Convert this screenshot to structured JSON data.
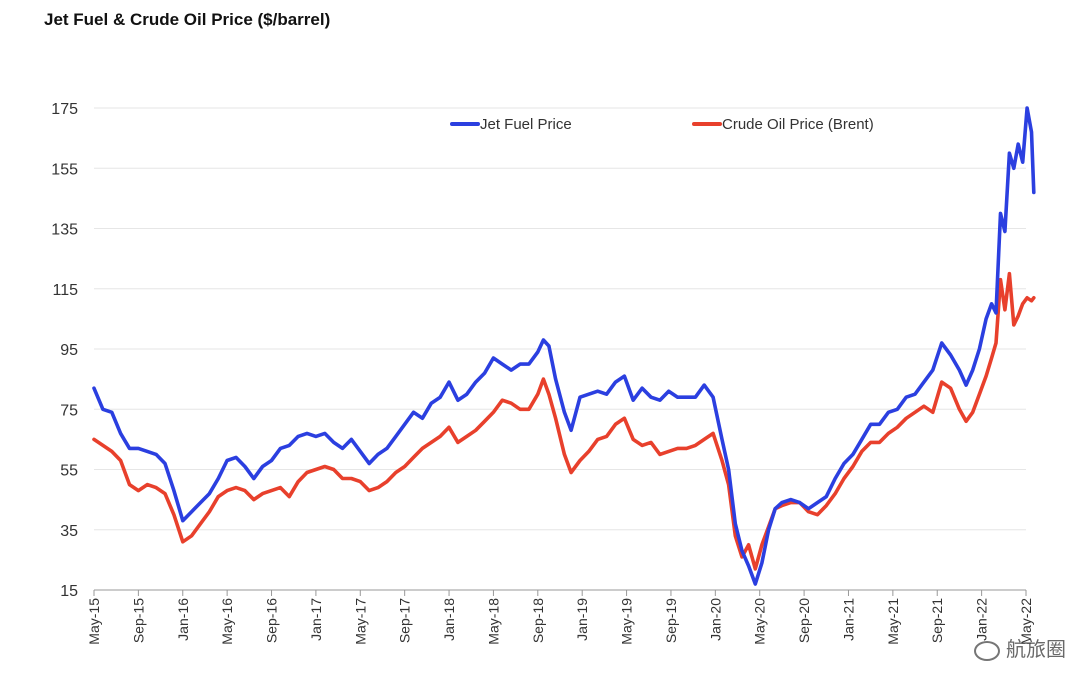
{
  "chart_data": {
    "type": "line",
    "title": "Jet Fuel & Crude Oil Price ($/barrel)",
    "xlabel": "",
    "ylabel": "",
    "ylim": [
      15,
      175
    ],
    "yticks": [
      15,
      35,
      55,
      75,
      95,
      115,
      135,
      155,
      175
    ],
    "xlim": [
      0,
      84
    ],
    "xticks": [
      {
        "label": "May-15",
        "x": 0
      },
      {
        "label": "Sep-15",
        "x": 4
      },
      {
        "label": "Jan-16",
        "x": 8
      },
      {
        "label": "May-16",
        "x": 12
      },
      {
        "label": "Sep-16",
        "x": 16
      },
      {
        "label": "Jan-17",
        "x": 20
      },
      {
        "label": "May-17",
        "x": 24
      },
      {
        "label": "Sep-17",
        "x": 28
      },
      {
        "label": "Jan-18",
        "x": 32
      },
      {
        "label": "May-18",
        "x": 36
      },
      {
        "label": "Sep-18",
        "x": 40
      },
      {
        "label": "Jan-19",
        "x": 44
      },
      {
        "label": "May-19",
        "x": 48
      },
      {
        "label": "Sep-19",
        "x": 52
      },
      {
        "label": "Jan-20",
        "x": 56
      },
      {
        "label": "May-20",
        "x": 60
      },
      {
        "label": "Sep-20",
        "x": 64
      },
      {
        "label": "Jan-21",
        "x": 68
      },
      {
        "label": "May-21",
        "x": 72
      },
      {
        "label": "Sep-21",
        "x": 76
      },
      {
        "label": "Jan-22",
        "x": 80
      },
      {
        "label": "May-22",
        "x": 84
      }
    ],
    "legend": "top",
    "grid": true,
    "series": [
      {
        "name": "Jet Fuel Price",
        "color": "#2b3fe0",
        "points": [
          [
            0,
            82
          ],
          [
            0.8,
            75
          ],
          [
            1.6,
            74
          ],
          [
            2.4,
            67
          ],
          [
            3.2,
            62
          ],
          [
            4.0,
            62
          ],
          [
            4.8,
            61
          ],
          [
            5.6,
            60
          ],
          [
            6.4,
            57
          ],
          [
            7.2,
            48
          ],
          [
            8.0,
            38
          ],
          [
            8.8,
            41
          ],
          [
            9.6,
            44
          ],
          [
            10.4,
            47
          ],
          [
            11.2,
            52
          ],
          [
            12.0,
            58
          ],
          [
            12.8,
            59
          ],
          [
            13.6,
            56
          ],
          [
            14.4,
            52
          ],
          [
            15.2,
            56
          ],
          [
            16.0,
            58
          ],
          [
            16.8,
            62
          ],
          [
            17.6,
            63
          ],
          [
            18.4,
            66
          ],
          [
            19.2,
            67
          ],
          [
            20.0,
            66
          ],
          [
            20.8,
            67
          ],
          [
            21.6,
            64
          ],
          [
            22.4,
            62
          ],
          [
            23.2,
            65
          ],
          [
            24.0,
            61
          ],
          [
            24.8,
            57
          ],
          [
            25.6,
            60
          ],
          [
            26.4,
            62
          ],
          [
            27.2,
            66
          ],
          [
            28.0,
            70
          ],
          [
            28.8,
            74
          ],
          [
            29.6,
            72
          ],
          [
            30.4,
            77
          ],
          [
            31.2,
            79
          ],
          [
            32.0,
            84
          ],
          [
            32.8,
            78
          ],
          [
            33.6,
            80
          ],
          [
            34.4,
            84
          ],
          [
            35.2,
            87
          ],
          [
            36.0,
            92
          ],
          [
            36.8,
            90
          ],
          [
            37.6,
            88
          ],
          [
            38.4,
            90
          ],
          [
            39.2,
            90
          ],
          [
            40.0,
            94
          ],
          [
            40.5,
            98
          ],
          [
            41.0,
            96
          ],
          [
            41.6,
            85
          ],
          [
            42.4,
            74
          ],
          [
            43.0,
            68
          ],
          [
            43.8,
            79
          ],
          [
            44.6,
            80
          ],
          [
            45.4,
            81
          ],
          [
            46.2,
            80
          ],
          [
            47.0,
            84
          ],
          [
            47.8,
            86
          ],
          [
            48.6,
            78
          ],
          [
            49.4,
            82
          ],
          [
            50.2,
            79
          ],
          [
            51.0,
            78
          ],
          [
            51.8,
            81
          ],
          [
            52.6,
            79
          ],
          [
            53.4,
            79
          ],
          [
            54.2,
            79
          ],
          [
            55.0,
            83
          ],
          [
            55.8,
            79
          ],
          [
            56.6,
            65
          ],
          [
            57.2,
            55
          ],
          [
            57.8,
            37
          ],
          [
            58.4,
            28
          ],
          [
            59.0,
            23
          ],
          [
            59.6,
            17
          ],
          [
            60.2,
            24
          ],
          [
            60.8,
            35
          ],
          [
            61.4,
            42
          ],
          [
            62.0,
            44
          ],
          [
            62.8,
            45
          ],
          [
            63.6,
            44
          ],
          [
            64.4,
            42
          ],
          [
            65.2,
            44
          ],
          [
            66.0,
            46
          ],
          [
            66.8,
            52
          ],
          [
            67.6,
            57
          ],
          [
            68.4,
            60
          ],
          [
            69.2,
            65
          ],
          [
            70.0,
            70
          ],
          [
            70.8,
            70
          ],
          [
            71.6,
            74
          ],
          [
            72.4,
            75
          ],
          [
            73.2,
            79
          ],
          [
            74.0,
            80
          ],
          [
            74.8,
            84
          ],
          [
            75.6,
            88
          ],
          [
            76.4,
            97
          ],
          [
            77.2,
            93
          ],
          [
            78.0,
            88
          ],
          [
            78.6,
            83
          ],
          [
            79.2,
            88
          ],
          [
            79.8,
            95
          ],
          [
            80.4,
            105
          ],
          [
            80.9,
            110
          ],
          [
            81.3,
            107
          ],
          [
            81.7,
            140
          ],
          [
            82.1,
            134
          ],
          [
            82.5,
            160
          ],
          [
            82.9,
            155
          ],
          [
            83.3,
            163
          ],
          [
            83.7,
            157
          ],
          [
            84.1,
            175
          ],
          [
            84.5,
            167
          ],
          [
            84.7,
            147
          ]
        ]
      },
      {
        "name": "Crude Oil Price (Brent)",
        "color": "#e8402c",
        "points": [
          [
            0,
            65
          ],
          [
            0.8,
            63
          ],
          [
            1.6,
            61
          ],
          [
            2.4,
            58
          ],
          [
            3.2,
            50
          ],
          [
            4.0,
            48
          ],
          [
            4.8,
            50
          ],
          [
            5.6,
            49
          ],
          [
            6.4,
            47
          ],
          [
            7.2,
            40
          ],
          [
            8.0,
            31
          ],
          [
            8.8,
            33
          ],
          [
            9.6,
            37
          ],
          [
            10.4,
            41
          ],
          [
            11.2,
            46
          ],
          [
            12.0,
            48
          ],
          [
            12.8,
            49
          ],
          [
            13.6,
            48
          ],
          [
            14.4,
            45
          ],
          [
            15.2,
            47
          ],
          [
            16.0,
            48
          ],
          [
            16.8,
            49
          ],
          [
            17.6,
            46
          ],
          [
            18.4,
            51
          ],
          [
            19.2,
            54
          ],
          [
            20.0,
            55
          ],
          [
            20.8,
            56
          ],
          [
            21.6,
            55
          ],
          [
            22.4,
            52
          ],
          [
            23.2,
            52
          ],
          [
            24.0,
            51
          ],
          [
            24.8,
            48
          ],
          [
            25.6,
            49
          ],
          [
            26.4,
            51
          ],
          [
            27.2,
            54
          ],
          [
            28.0,
            56
          ],
          [
            28.8,
            59
          ],
          [
            29.6,
            62
          ],
          [
            30.4,
            64
          ],
          [
            31.2,
            66
          ],
          [
            32.0,
            69
          ],
          [
            32.8,
            64
          ],
          [
            33.6,
            66
          ],
          [
            34.4,
            68
          ],
          [
            35.2,
            71
          ],
          [
            36.0,
            74
          ],
          [
            36.8,
            78
          ],
          [
            37.6,
            77
          ],
          [
            38.4,
            75
          ],
          [
            39.2,
            75
          ],
          [
            40.0,
            80
          ],
          [
            40.5,
            85
          ],
          [
            41.0,
            80
          ],
          [
            41.6,
            72
          ],
          [
            42.4,
            60
          ],
          [
            43.0,
            54
          ],
          [
            43.8,
            58
          ],
          [
            44.6,
            61
          ],
          [
            45.4,
            65
          ],
          [
            46.2,
            66
          ],
          [
            47.0,
            70
          ],
          [
            47.8,
            72
          ],
          [
            48.6,
            65
          ],
          [
            49.4,
            63
          ],
          [
            50.2,
            64
          ],
          [
            51.0,
            60
          ],
          [
            51.8,
            61
          ],
          [
            52.6,
            62
          ],
          [
            53.4,
            62
          ],
          [
            54.2,
            63
          ],
          [
            55.0,
            65
          ],
          [
            55.8,
            67
          ],
          [
            56.6,
            58
          ],
          [
            57.2,
            50
          ],
          [
            57.8,
            33
          ],
          [
            58.4,
            26
          ],
          [
            59.0,
            30
          ],
          [
            59.6,
            22
          ],
          [
            60.2,
            30
          ],
          [
            60.8,
            36
          ],
          [
            61.4,
            42
          ],
          [
            62.0,
            43
          ],
          [
            62.8,
            44
          ],
          [
            63.6,
            44
          ],
          [
            64.4,
            41
          ],
          [
            65.2,
            40
          ],
          [
            66.0,
            43
          ],
          [
            66.8,
            47
          ],
          [
            67.6,
            52
          ],
          [
            68.4,
            56
          ],
          [
            69.2,
            61
          ],
          [
            70.0,
            64
          ],
          [
            70.8,
            64
          ],
          [
            71.6,
            67
          ],
          [
            72.4,
            69
          ],
          [
            73.2,
            72
          ],
          [
            74.0,
            74
          ],
          [
            74.8,
            76
          ],
          [
            75.6,
            74
          ],
          [
            76.4,
            84
          ],
          [
            77.2,
            82
          ],
          [
            78.0,
            75
          ],
          [
            78.6,
            71
          ],
          [
            79.2,
            74
          ],
          [
            79.8,
            80
          ],
          [
            80.4,
            86
          ],
          [
            80.9,
            92
          ],
          [
            81.3,
            97
          ],
          [
            81.7,
            118
          ],
          [
            82.1,
            108
          ],
          [
            82.5,
            120
          ],
          [
            82.9,
            103
          ],
          [
            83.3,
            106
          ],
          [
            83.7,
            110
          ],
          [
            84.1,
            112
          ],
          [
            84.5,
            111
          ],
          [
            84.7,
            112
          ]
        ]
      }
    ]
  },
  "watermark": {
    "text": "航旅圈"
  }
}
